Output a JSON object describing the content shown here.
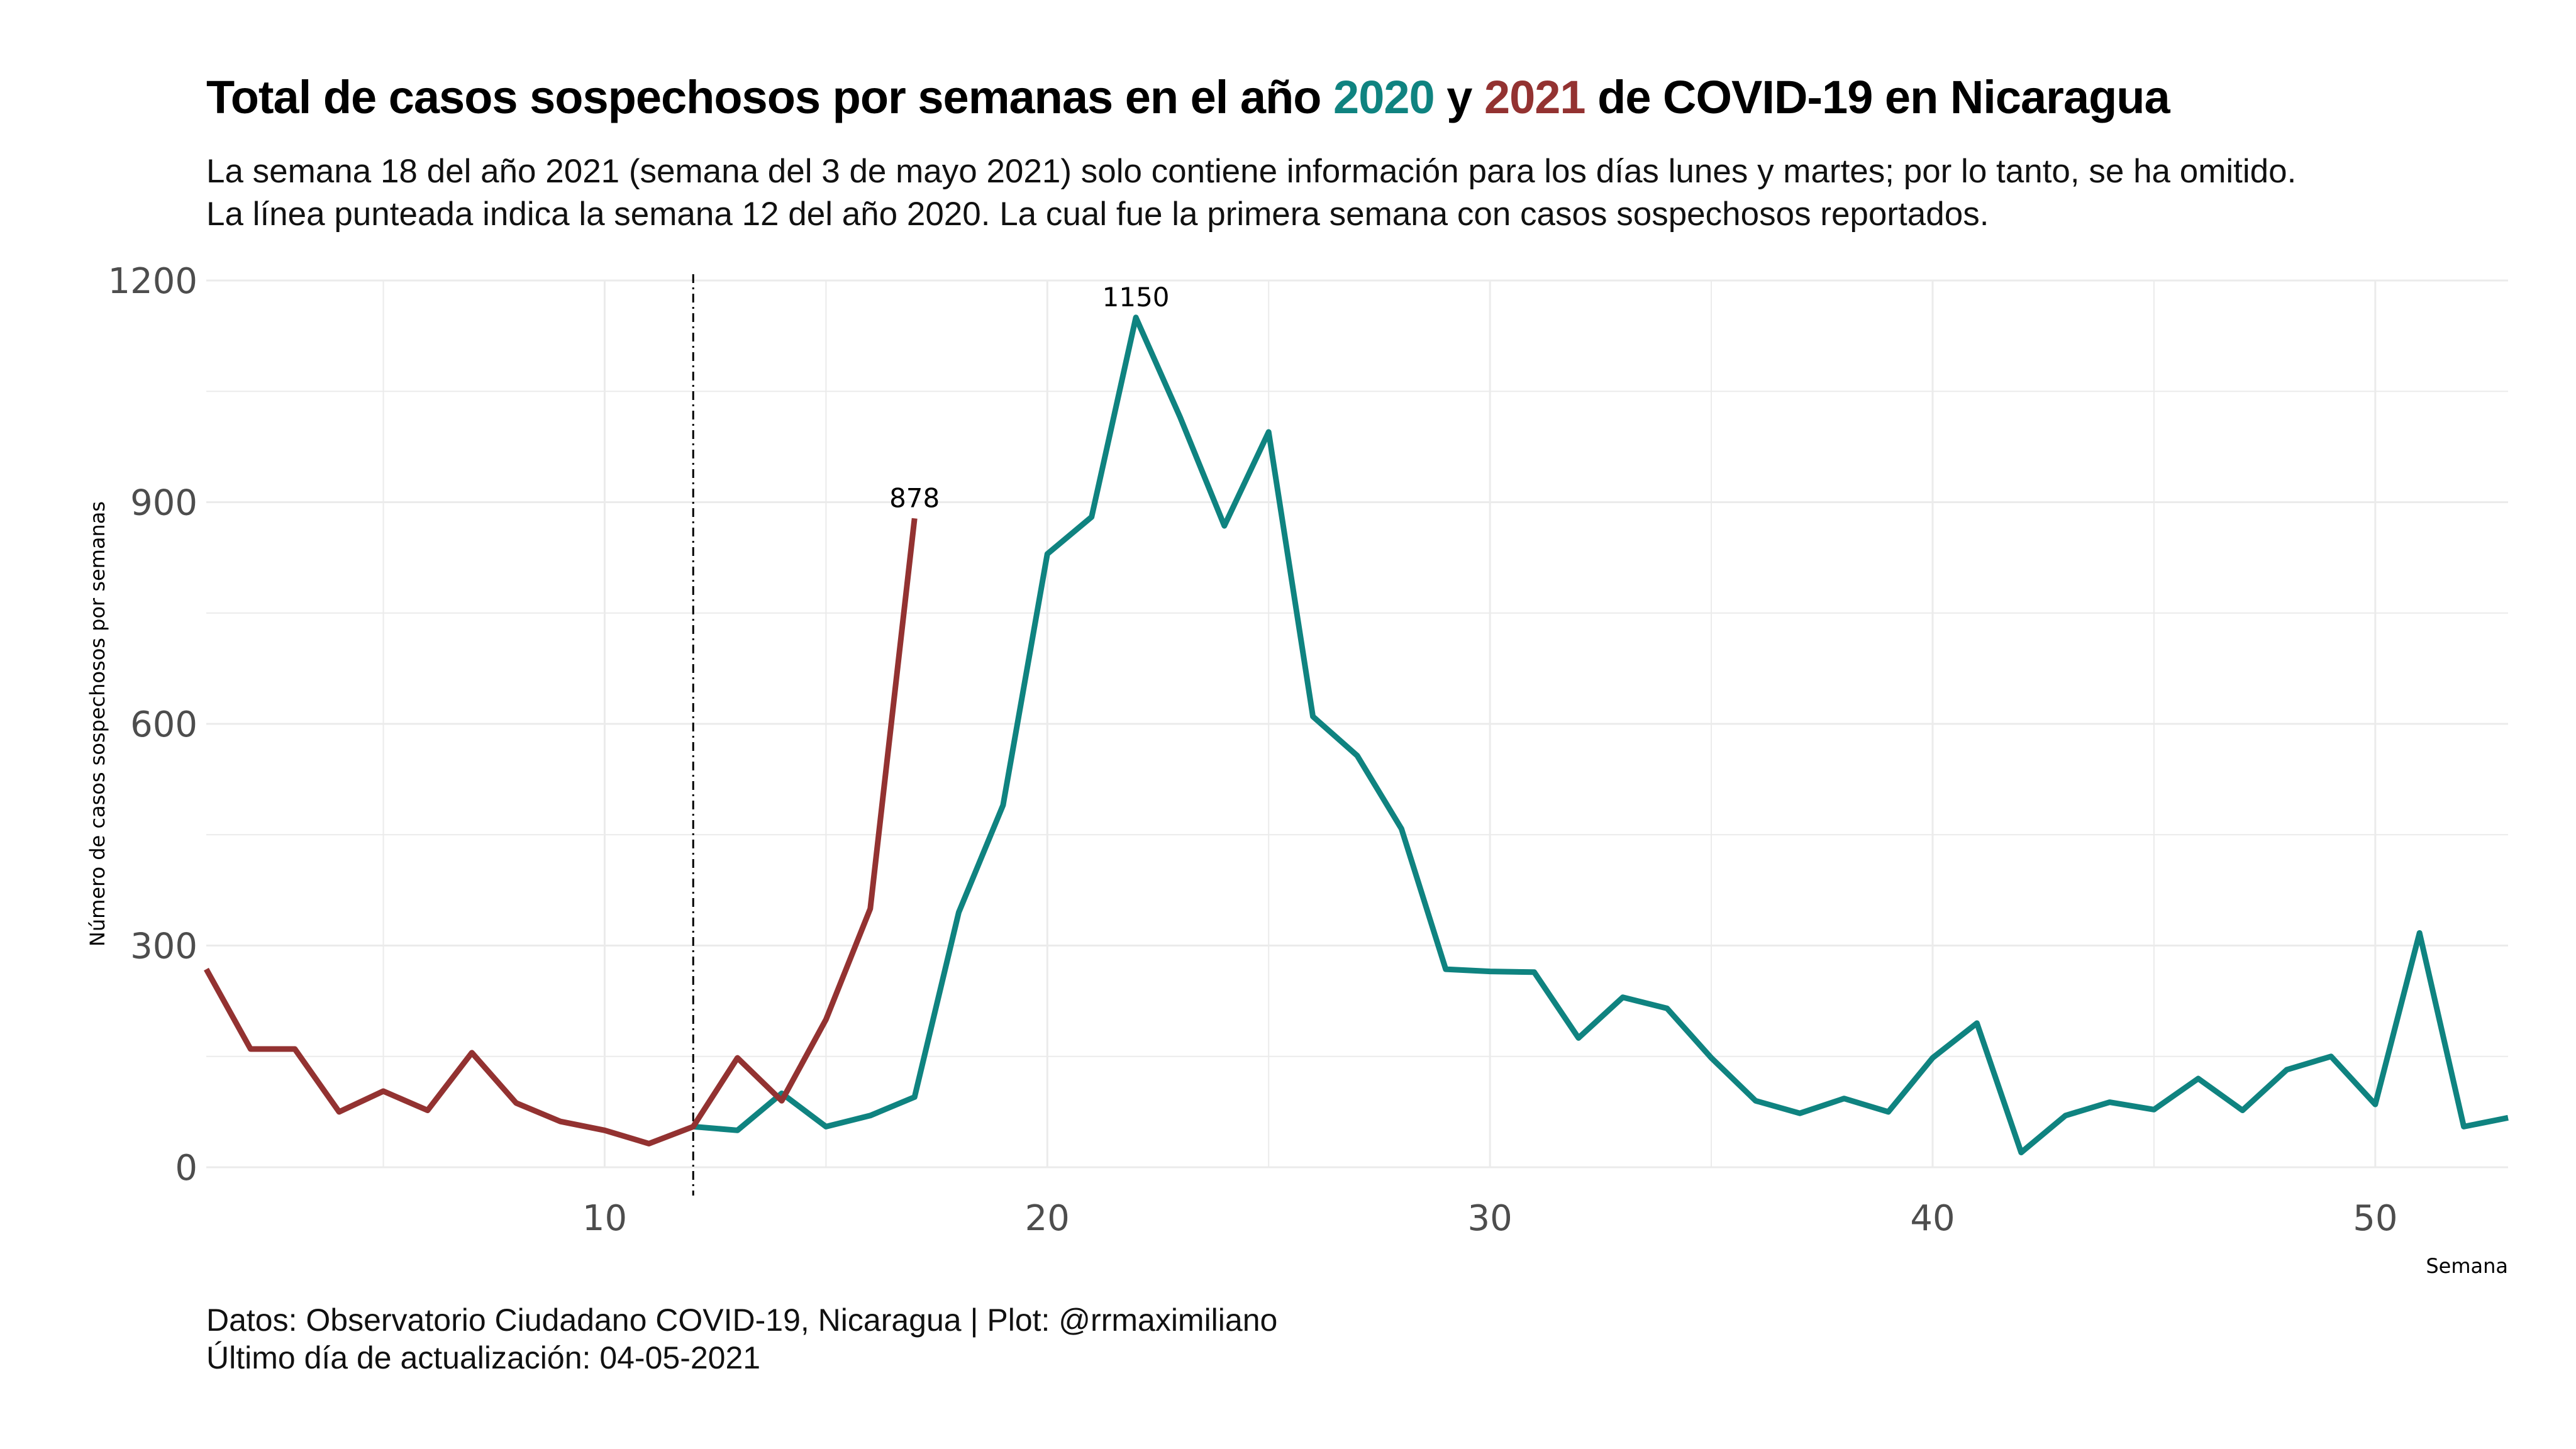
{
  "title": {
    "part1": "Total de casos sospechosos por semanas en el año ",
    "year_a": "2020",
    "part2": " y ",
    "year_b": "2021",
    "part3": " de COVID-19 en Nicaragua"
  },
  "subtitle": {
    "line1": "La semana 18 del año 2021 (semana del 3 de mayo 2021) solo contiene información para los días lunes y martes; por lo tanto, se ha omitido.",
    "line2": "La línea punteada indica la semana 12 del año 2020. La cual fue la primera semana con casos sospechosos reportados."
  },
  "caption": {
    "line1": "Datos: Observatorio Ciudadano COVID-19, Nicaragua | Plot: @rrmaximiliano",
    "line2": "Último día de actualización: 04-05-2021"
  },
  "colors": {
    "series_2020": "#0f8380",
    "series_2021": "#933231",
    "grid": "#ebebeb",
    "vline": "#000000"
  },
  "chart_data": {
    "type": "line",
    "xlabel": "Semana",
    "ylabel": "Número de casos sospechosos por semanas",
    "xlim": [
      1,
      53
    ],
    "ylim": [
      0,
      1200
    ],
    "x_ticks": [
      10,
      20,
      30,
      40,
      50
    ],
    "y_ticks": [
      0,
      300,
      600,
      900,
      1200
    ],
    "grid": true,
    "reference_line": {
      "x": 12,
      "style": "dot-dash"
    },
    "series": [
      {
        "name": "2020",
        "x": [
          12,
          13,
          14,
          15,
          16,
          17,
          18,
          19,
          20,
          21,
          22,
          23,
          24,
          25,
          26,
          27,
          28,
          29,
          30,
          31,
          32,
          33,
          34,
          35,
          36,
          37,
          38,
          39,
          40,
          41,
          42,
          43,
          44,
          45,
          46,
          47,
          48,
          49,
          50,
          51,
          52,
          53
        ],
        "y": [
          55,
          50,
          100,
          55,
          70,
          95,
          345,
          490,
          830,
          880,
          1150,
          1015,
          868,
          995,
          610,
          557,
          458,
          268,
          265,
          264,
          175,
          230,
          215,
          148,
          90,
          73,
          93,
          75,
          148,
          195,
          20,
          70,
          88,
          78,
          120,
          77,
          132,
          150,
          85,
          317,
          55,
          67
        ]
      },
      {
        "name": "2021",
        "x": [
          1,
          2,
          3,
          4,
          5,
          6,
          7,
          8,
          9,
          10,
          11,
          12,
          13,
          14,
          15,
          16,
          17
        ],
        "y": [
          268,
          160,
          160,
          75,
          103,
          77,
          155,
          87,
          62,
          50,
          32,
          55,
          148,
          90,
          200,
          350,
          878
        ]
      }
    ],
    "annotations": [
      {
        "series": "2020",
        "x": 22,
        "y": 1150,
        "text": "1150"
      },
      {
        "series": "2021",
        "x": 17,
        "y": 878,
        "text": "878"
      }
    ]
  }
}
